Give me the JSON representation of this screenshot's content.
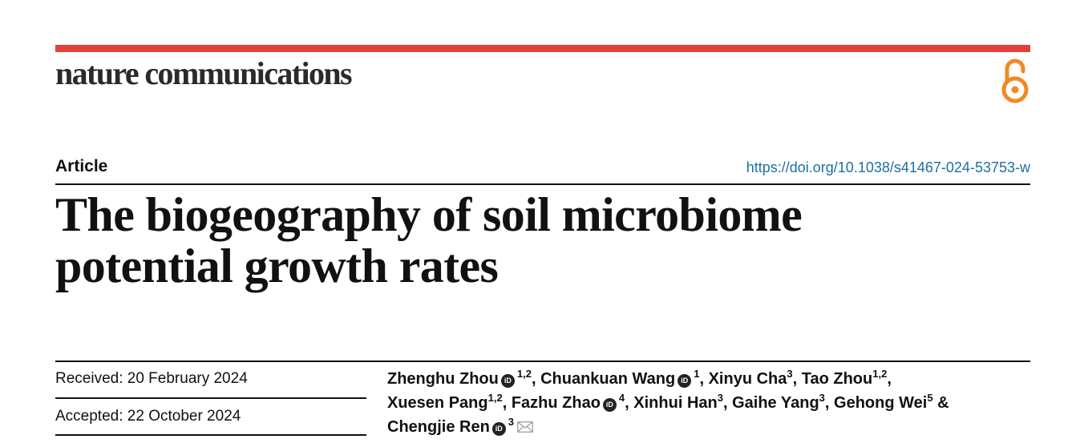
{
  "header": {
    "journal_name": "nature communications",
    "accent_color": "#e2403a",
    "open_access_icon": "open-access-lock-icon",
    "open_access_color": "#f08a24"
  },
  "article": {
    "type": "Article",
    "doi": "https://doi.org/10.1038/s41467-024-53753-w",
    "title_line1": "The biogeography of soil microbiome",
    "title_line2": "potential growth rates"
  },
  "dates": {
    "received": "Received: 20 February 2024",
    "accepted": "Accepted: 22 October 2024"
  },
  "authors": [
    {
      "name": "Zhenghu Zhou",
      "orcid": true,
      "aff": "1,2",
      "sep": ", "
    },
    {
      "name": "Chuankuan Wang",
      "orcid": true,
      "aff": "1",
      "sep": ", "
    },
    {
      "name": "Xinyu Cha",
      "orcid": false,
      "aff": "3",
      "sep": ", "
    },
    {
      "name": "Tao Zhou",
      "orcid": false,
      "aff": "1,2",
      "sep": ","
    },
    {
      "name": "Xuesen Pang",
      "orcid": false,
      "aff": "1,2",
      "sep": ", "
    },
    {
      "name": "Fazhu Zhao",
      "orcid": true,
      "aff": "4",
      "sep": ", "
    },
    {
      "name": "Xinhui Han",
      "orcid": false,
      "aff": "3",
      "sep": ", "
    },
    {
      "name": "Gaihe Yang",
      "orcid": false,
      "aff": "3",
      "sep": ", "
    },
    {
      "name": "Gehong Wei",
      "orcid": false,
      "aff": "5",
      "sep": " & "
    },
    {
      "name": "Chengjie Ren",
      "orcid": true,
      "aff": "3",
      "sep": "",
      "email": true
    }
  ],
  "orcid_icon_label": "iD"
}
